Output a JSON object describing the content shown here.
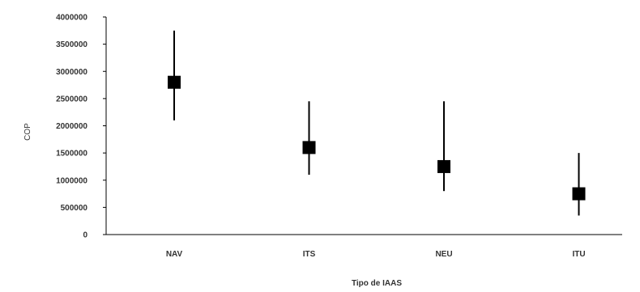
{
  "chart_data": {
    "type": "scatter",
    "subtype": "error-bar",
    "title": "",
    "xlabel": "Tipo de IAAS",
    "ylabel": "COP",
    "categories": [
      "NAV",
      "ITS",
      "NEU",
      "ITU"
    ],
    "series": [
      {
        "values": [
          2800000,
          1600000,
          1250000,
          750000
        ],
        "low": [
          2100000,
          1100000,
          800000,
          350000
        ],
        "high": [
          3750000,
          2450000,
          2450000,
          1500000
        ]
      }
    ],
    "ylim": [
      0,
      4000000
    ],
    "yticks": [
      0,
      500000,
      1000000,
      1500000,
      2000000,
      2500000,
      3000000,
      3500000,
      4000000
    ],
    "ytick_labels": [
      "0",
      "500000",
      "1000000",
      "1500000",
      "2000000",
      "2500000",
      "3000000",
      "3500000",
      "4000000"
    ],
    "grid": false,
    "legend": "none",
    "colors": {
      "marker": "#000000",
      "axis": "#000000",
      "text": "#333333"
    }
  }
}
